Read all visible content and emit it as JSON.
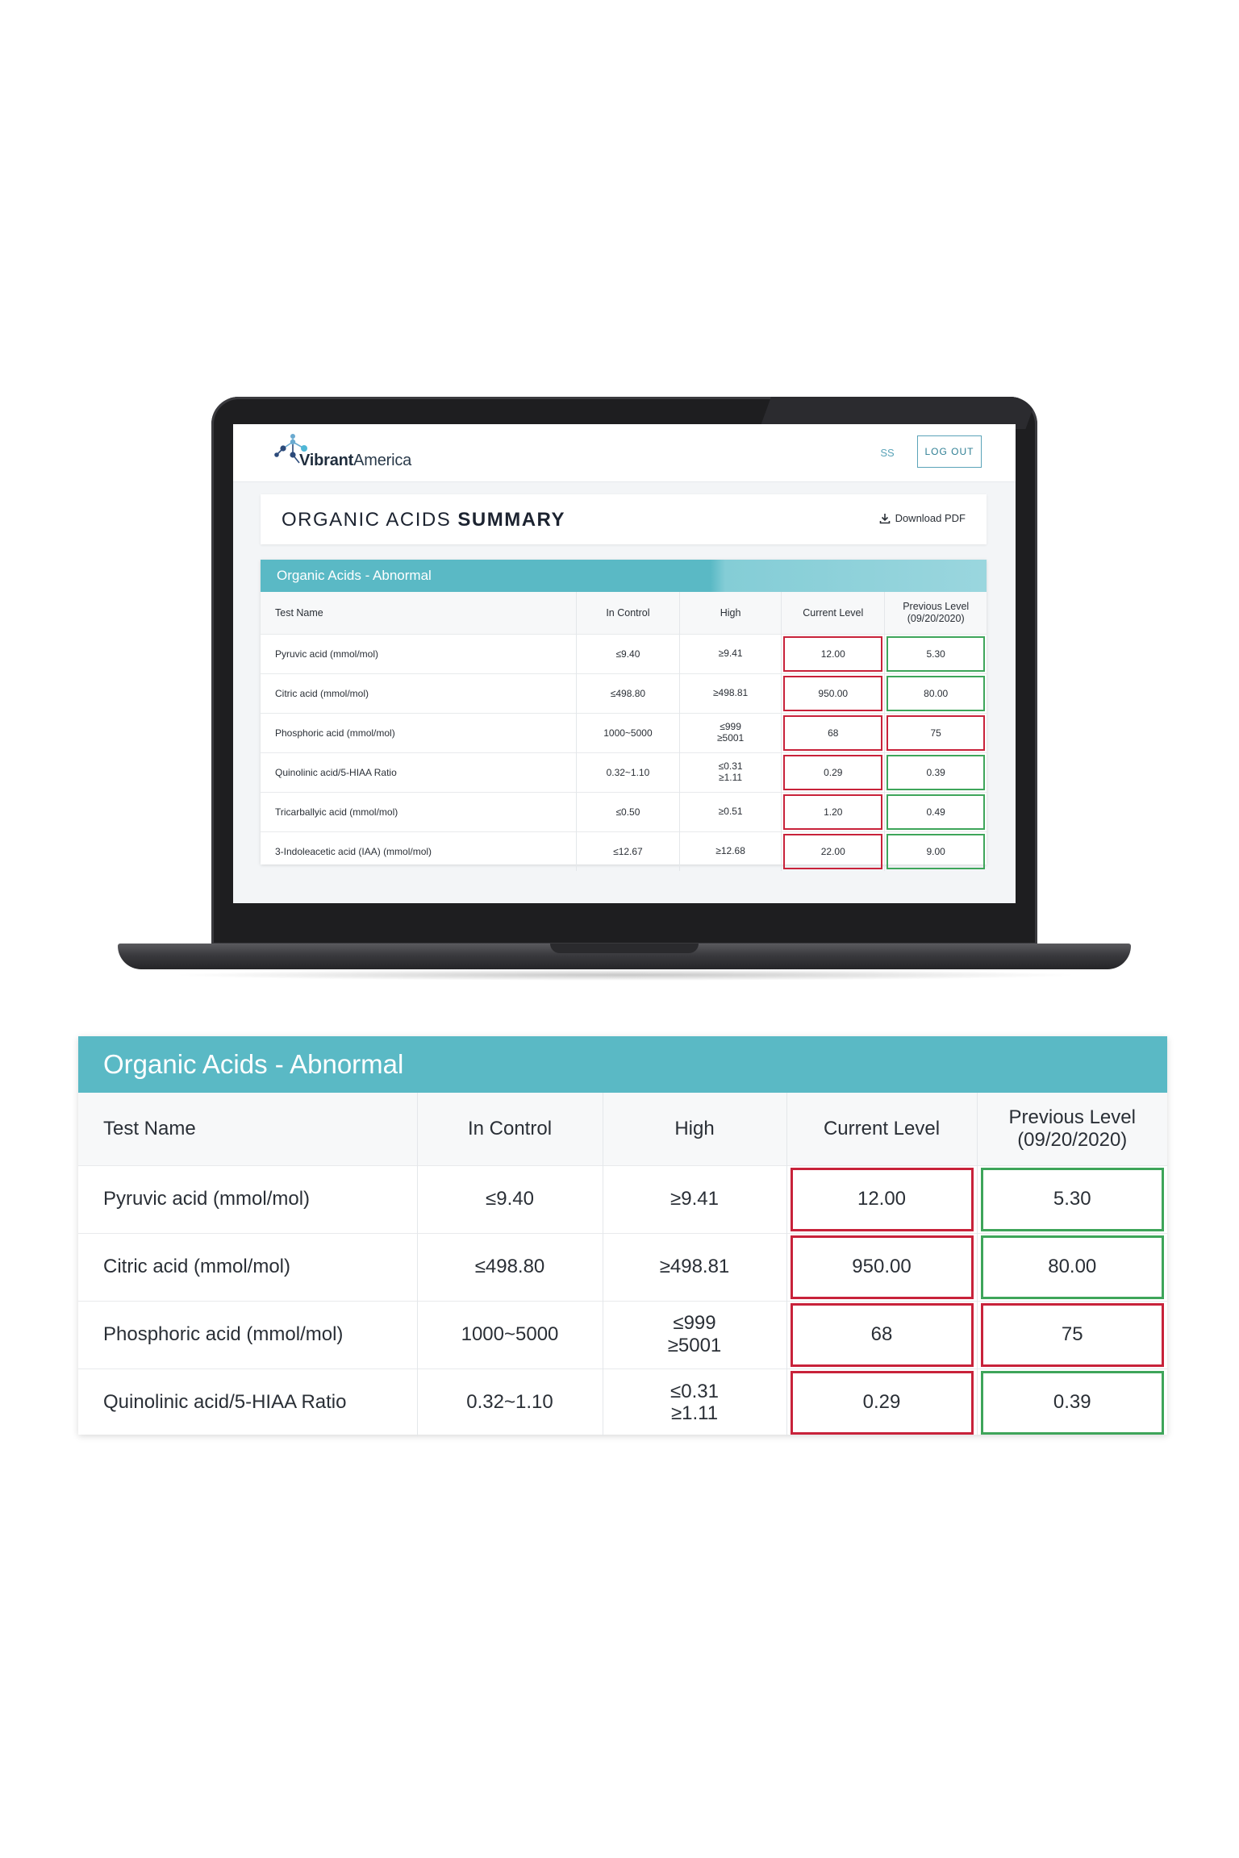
{
  "app": {
    "logo_bold": "Vibrant",
    "logo_light": "America",
    "user_initials": "SS",
    "logout_label": "LOG OUT"
  },
  "summary": {
    "title_part1": "ORGANIC",
    "title_part2": "ACIDS",
    "title_part3": "SUMMARY",
    "download_label": "Download PDF"
  },
  "panel": {
    "title": "Organic Acids - Abnormal",
    "columns": {
      "test_name": "Test Name",
      "in_control": "In Control",
      "high": "High",
      "current_level": "Current Level",
      "previous_level_line1": "Previous Level",
      "previous_level_line2": "(09/20/2020)"
    },
    "rows": [
      {
        "name": "Pyruvic acid (mmol/mol)",
        "in_control": "≤9.40",
        "high": [
          "≥9.41"
        ],
        "current": "12.00",
        "previous": "5.30",
        "previous_status": "green"
      },
      {
        "name": "Citric acid (mmol/mol)",
        "in_control": "≤498.80",
        "high": [
          "≥498.81"
        ],
        "current": "950.00",
        "previous": "80.00",
        "previous_status": "green"
      },
      {
        "name": "Phosphoric acid (mmol/mol)",
        "in_control": "1000~5000",
        "high": [
          "≤999",
          "≥5001"
        ],
        "current": "68",
        "previous": "75",
        "previous_status": "red"
      },
      {
        "name": "Quinolinic acid/5-HIAA Ratio",
        "in_control": "0.32~1.10",
        "high": [
          "≤0.31",
          "≥1.11"
        ],
        "current": "0.29",
        "previous": "0.39",
        "previous_status": "green"
      },
      {
        "name": "Tricarballyic acid (mmol/mol)",
        "in_control": "≤0.50",
        "high": [
          "≥0.51"
        ],
        "current": "1.20",
        "previous": "0.49",
        "previous_status": "green"
      },
      {
        "name": "3-Indoleacetic acid (IAA) (mmol/mol)",
        "in_control": "≤12.67",
        "high": [
          "≥12.68"
        ],
        "current": "22.00",
        "previous": "9.00",
        "previous_status": "green"
      }
    ]
  },
  "colors": {
    "band_teal": "#5ab9c5",
    "alert_red": "#c8223a",
    "ok_green": "#3ea55a"
  },
  "icons": [
    "vibrant-america-logo-icon",
    "download-icon"
  ]
}
